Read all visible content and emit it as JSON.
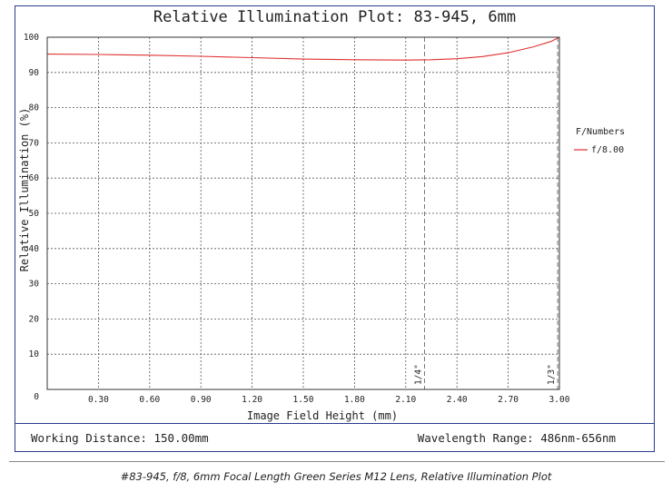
{
  "chart_data": {
    "type": "line",
    "title": "Relative Illumination Plot: 83-945, 6mm",
    "xlabel": "Image Field Height (mm)",
    "ylabel": "Relative Illumination (%)",
    "xlim": [
      0,
      3.0
    ],
    "ylim": [
      0,
      100
    ],
    "x_ticks": [
      "0.30",
      "0.60",
      "0.90",
      "1.20",
      "1.50",
      "1.80",
      "2.10",
      "2.40",
      "2.70",
      "3.00"
    ],
    "y_ticks": [
      "0",
      "10",
      "20",
      "30",
      "40",
      "50",
      "60",
      "70",
      "80",
      "90",
      "100"
    ],
    "grid": true,
    "legend_title": "F/Numbers",
    "legend_position": "right",
    "series": [
      {
        "name": "f/8.00",
        "color": "#e03030",
        "x": [
          0,
          0.3,
          0.6,
          0.9,
          1.2,
          1.5,
          1.8,
          2.1,
          2.25,
          2.4,
          2.55,
          2.7,
          2.85,
          2.95,
          3.0
        ],
        "y": [
          95.2,
          95.1,
          94.9,
          94.6,
          94.2,
          93.8,
          93.6,
          93.5,
          93.6,
          93.9,
          94.5,
          95.6,
          97.3,
          98.8,
          100
        ]
      }
    ],
    "annotations": [
      {
        "x": 2.21,
        "label": "1/4\""
      },
      {
        "x": 2.99,
        "label": "1/3\""
      }
    ]
  },
  "footer": {
    "working_distance": "Working Distance: 150.00mm",
    "wavelength_range": "Wavelength Range: 486nm-656nm"
  },
  "caption": "#83-945, f/8, 6mm Focal Length Green Series M12 Lens, Relative Illumination Plot"
}
